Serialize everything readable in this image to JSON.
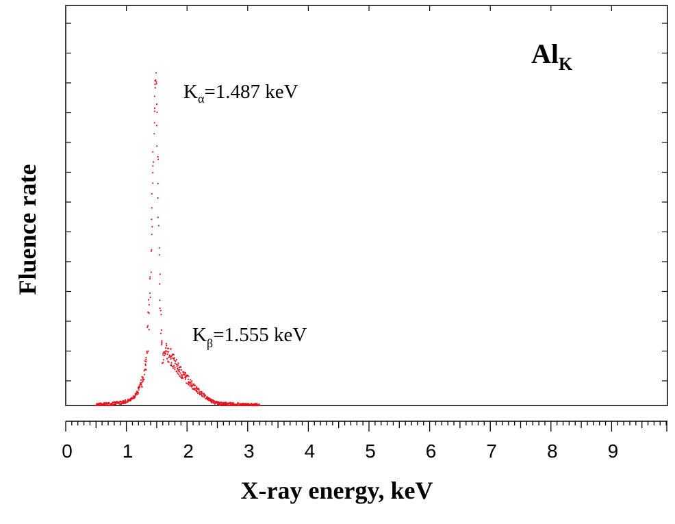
{
  "chart_data": {
    "type": "scatter",
    "title": "Al",
    "title_sub": "K",
    "xlabel": "X-ray energy, keV",
    "ylabel": "Fluence rate",
    "xlim": [
      0,
      10
    ],
    "ylim": [
      0,
      1.05
    ],
    "x_ticks": [
      "0",
      "1",
      "2",
      "3",
      "4",
      "5",
      "6",
      "7",
      "8",
      "9"
    ],
    "y_tick_labels_shown": false,
    "grid": false,
    "point_color": "#e8101a",
    "annotations": [
      {
        "main": "K",
        "sub": "α",
        "rest": "=1.487 keV",
        "x": 1.487
      },
      {
        "main": "K",
        "sub": "β",
        "rest": "=1.555 keV",
        "x": 1.555
      }
    ],
    "peaks": [
      {
        "center": 1.487,
        "height": 1.0
      },
      {
        "center": 1.555,
        "height": 0.16
      }
    ],
    "spectrum": {
      "x": [
        0.5,
        0.6,
        0.7,
        0.8,
        0.9,
        1.0,
        1.05,
        1.1,
        1.15,
        1.2,
        1.25,
        1.3,
        1.33,
        1.36,
        1.39,
        1.42,
        1.45,
        1.47,
        1.487,
        1.5,
        1.52,
        1.54,
        1.56,
        1.58,
        1.6,
        1.63,
        1.66,
        1.7,
        1.75,
        1.8,
        1.85,
        1.9,
        1.95,
        2.0,
        2.05,
        2.1,
        2.15,
        2.2,
        2.25,
        2.3,
        2.35,
        2.4,
        2.45,
        2.5,
        2.6,
        2.7,
        2.8,
        2.9,
        3.0,
        3.1,
        3.2
      ],
      "y": [
        0.002,
        0.003,
        0.004,
        0.006,
        0.008,
        0.012,
        0.015,
        0.02,
        0.03,
        0.045,
        0.065,
        0.1,
        0.14,
        0.22,
        0.35,
        0.55,
        0.8,
        0.95,
        1.0,
        0.92,
        0.72,
        0.5,
        0.3,
        0.18,
        0.14,
        0.15,
        0.16,
        0.155,
        0.14,
        0.125,
        0.11,
        0.1,
        0.09,
        0.08,
        0.07,
        0.06,
        0.05,
        0.042,
        0.035,
        0.028,
        0.02,
        0.014,
        0.01,
        0.007,
        0.005,
        0.004,
        0.003,
        0.002,
        0.002,
        0.001,
        0.001
      ]
    }
  }
}
